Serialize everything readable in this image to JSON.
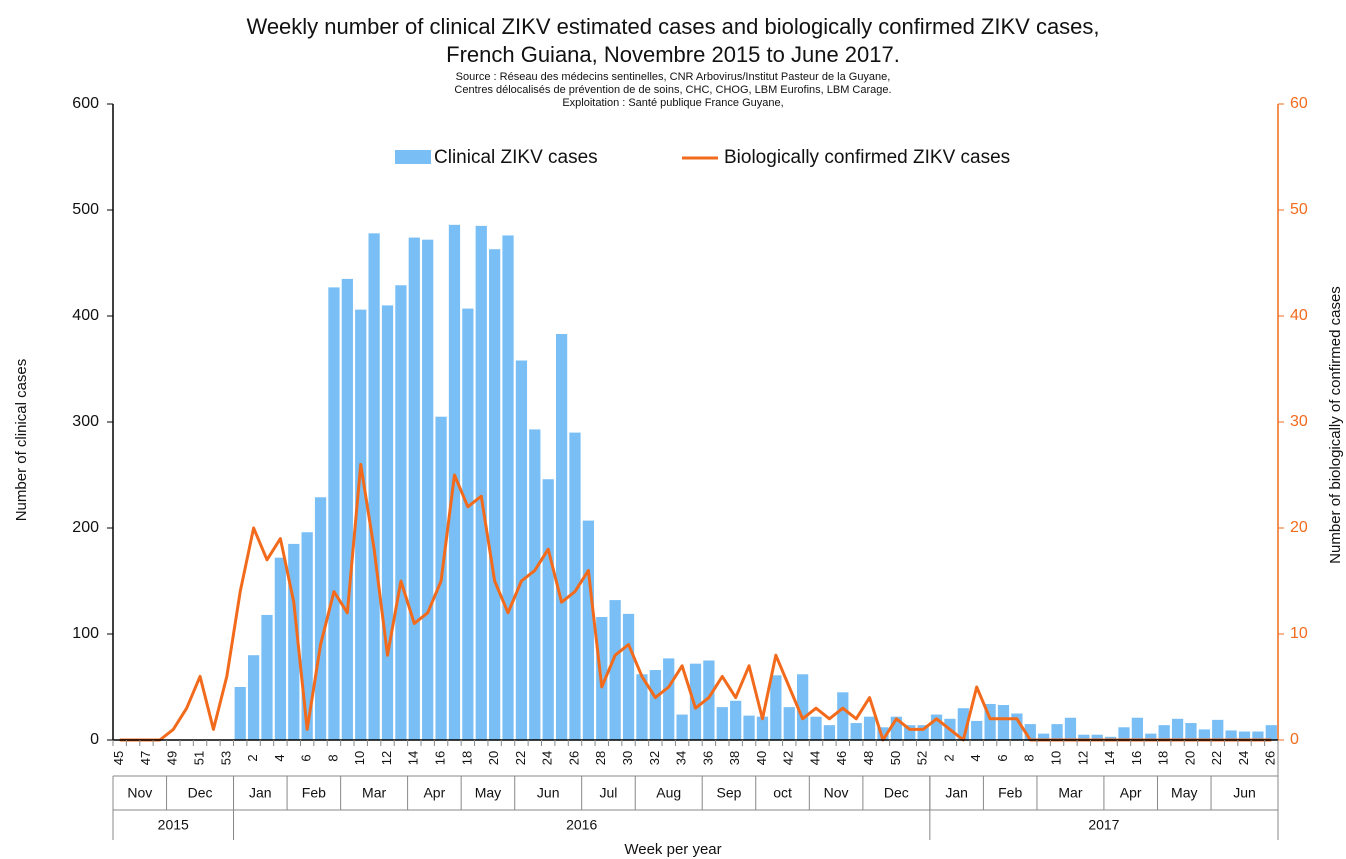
{
  "chart_data": {
    "type": "bar_line",
    "title": [
      "Weekly number of clinical ZIKV estimated cases and biologically confirmed ZIKV cases,",
      "French Guiana, Novembre 2015 to June 2017."
    ],
    "subtitle": [
      "Source : Réseau des médecins sentinelles, CNR Arbovirus/Institut Pasteur de la Guyane,",
      "Centres délocalisés de prévention de de soins, CHC, CHOG, LBM Eurofins, LBM Carage.",
      "Exploitation : Santé publique France Guyane,"
    ],
    "xlabel": "Week per year",
    "ylabel": "Number of clinical cases",
    "y2label": "Number of biologically of confirmed cases",
    "categories": [
      "45",
      null,
      "47",
      null,
      "49",
      null,
      "51",
      null,
      "53",
      null,
      "2",
      null,
      "4",
      null,
      "6",
      null,
      "8",
      null,
      "10",
      null,
      "12",
      null,
      "14",
      null,
      "16",
      null,
      "18",
      null,
      "20",
      null,
      "22",
      null,
      "24",
      null,
      "26",
      null,
      "28",
      null,
      "30",
      null,
      "32",
      null,
      "34",
      null,
      "36",
      null,
      "38",
      null,
      "40",
      null,
      "42",
      null,
      "44",
      null,
      "46",
      null,
      "48",
      null,
      "50",
      null,
      "52",
      null,
      "2",
      null,
      "4",
      null,
      "6",
      null,
      "8",
      null,
      "10",
      null,
      "12",
      null,
      "14",
      null,
      "16",
      null,
      "18",
      null,
      "20",
      null,
      "22",
      null,
      "24",
      null,
      "26"
    ],
    "month_groups": [
      {
        "label": "Nov",
        "weeks": 4
      },
      {
        "label": "Dec",
        "weeks": 5
      },
      {
        "label": "Jan",
        "weeks": 4
      },
      {
        "label": "Feb",
        "weeks": 4
      },
      {
        "label": "Mar",
        "weeks": 5
      },
      {
        "label": "Apr",
        "weeks": 4
      },
      {
        "label": "May",
        "weeks": 4
      },
      {
        "label": "Jun",
        "weeks": 5
      },
      {
        "label": "Jul",
        "weeks": 4
      },
      {
        "label": "Aug",
        "weeks": 5
      },
      {
        "label": "Sep",
        "weeks": 4
      },
      {
        "label": "oct",
        "weeks": 4
      },
      {
        "label": "Nov",
        "weeks": 4
      },
      {
        "label": "Dec",
        "weeks": 5
      },
      {
        "label": "Jan",
        "weeks": 4
      },
      {
        "label": "Feb",
        "weeks": 4
      },
      {
        "label": "Mar",
        "weeks": 5
      },
      {
        "label": "Apr",
        "weeks": 4
      },
      {
        "label": "May",
        "weeks": 4
      },
      {
        "label": "Jun",
        "weeks": 5
      }
    ],
    "year_groups": [
      {
        "label": "2015",
        "weeks": 9
      },
      {
        "label": "2016",
        "weeks": 52
      },
      {
        "label": "2017",
        "weeks": 26
      }
    ],
    "series": [
      {
        "name": "Clinical ZIKV cases",
        "type": "bar",
        "color": "#79bff5",
        "values": [
          null,
          null,
          null,
          null,
          null,
          null,
          null,
          null,
          null,
          50,
          80,
          118,
          172,
          185,
          196,
          229,
          427,
          435,
          406,
          478,
          410,
          429,
          474,
          472,
          305,
          486,
          407,
          485,
          463,
          476,
          358,
          293,
          246,
          383,
          290,
          207,
          116,
          132,
          119,
          62,
          66,
          77,
          24,
          72,
          75,
          31,
          37,
          23,
          22,
          61,
          31,
          62,
          22,
          14,
          45,
          16,
          22,
          12,
          22,
          14,
          14,
          24,
          20,
          30,
          18,
          34,
          33,
          25,
          15,
          6,
          15,
          21,
          5,
          5,
          3,
          12,
          21,
          6,
          14,
          20,
          16,
          10,
          19,
          9,
          8,
          8,
          14
        ]
      },
      {
        "name": "Biologically confirmed ZIKV cases",
        "type": "line",
        "axis": "y2",
        "color": "#f26b1d",
        "values": [
          0,
          0,
          0,
          0,
          1,
          3,
          6,
          1,
          6,
          14,
          20,
          17,
          19,
          13,
          1,
          9,
          14,
          12,
          26,
          18,
          8,
          15,
          11,
          12,
          15,
          25,
          22,
          23,
          15,
          12,
          15,
          16,
          18,
          13,
          14,
          16,
          5,
          8,
          9,
          6,
          4,
          5,
          7,
          3,
          4,
          6,
          4,
          7,
          2,
          8,
          5,
          2,
          3,
          2,
          3,
          2,
          4,
          0,
          2,
          1,
          1,
          2,
          1,
          0,
          5,
          2,
          2,
          2,
          0,
          0,
          0,
          0,
          0,
          0,
          0,
          0,
          0,
          0,
          0,
          0,
          0,
          0,
          0,
          0,
          0,
          0,
          0
        ]
      }
    ],
    "ylim": [
      0,
      600
    ],
    "yticks": [
      0,
      100,
      200,
      300,
      400,
      500,
      600
    ],
    "y2lim": [
      0,
      60
    ],
    "y2ticks": [
      0,
      10,
      20,
      30,
      40,
      50,
      60
    ],
    "y2color": "#f26b1d"
  }
}
